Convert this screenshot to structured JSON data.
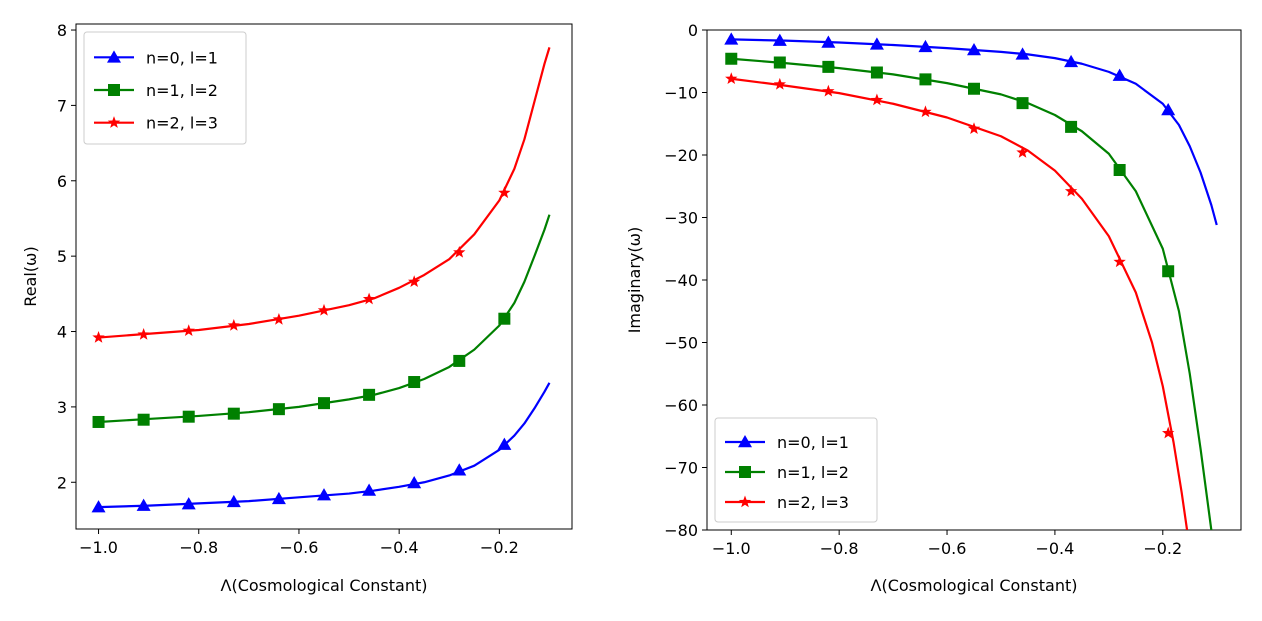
{
  "chart_data": [
    {
      "type": "line",
      "title": "",
      "xlabel": "Λ(Cosmological Constant)",
      "ylabel": "Real(ω)",
      "xlim": [
        -1.045,
        -0.055
      ],
      "ylim": [
        1.38,
        8.08
      ],
      "xticks": [
        -1.0,
        -0.8,
        -0.6,
        -0.4,
        -0.2
      ],
      "xtick_labels": [
        "−1.0",
        "−0.8",
        "−0.6",
        "−0.4",
        "−0.2"
      ],
      "yticks": [
        2,
        3,
        4,
        5,
        6,
        7,
        8
      ],
      "ytick_labels": [
        "2",
        "3",
        "4",
        "5",
        "6",
        "7",
        "8"
      ],
      "grid": false,
      "legend_position": "top-left",
      "series": [
        {
          "name": "n=0, l=1",
          "color": "#0000ff",
          "marker": "triangle",
          "x": [
            -1.0,
            -0.91,
            -0.82,
            -0.73,
            -0.64,
            -0.55,
            -0.46,
            -0.37,
            -0.28,
            -0.19
          ],
          "values": [
            1.67,
            1.69,
            1.71,
            1.74,
            1.78,
            1.83,
            1.89,
            1.99,
            2.16,
            2.5
          ],
          "curve_x": [
            -1.0,
            -0.9,
            -0.8,
            -0.7,
            -0.6,
            -0.5,
            -0.45,
            -0.4,
            -0.35,
            -0.3,
            -0.25,
            -0.2,
            -0.17,
            -0.15,
            -0.13,
            -0.11,
            -0.1
          ],
          "curve_y": [
            1.67,
            1.69,
            1.72,
            1.75,
            1.8,
            1.85,
            1.89,
            1.94,
            2.0,
            2.09,
            2.22,
            2.43,
            2.62,
            2.78,
            2.98,
            3.2,
            3.32
          ]
        },
        {
          "name": "n=1, l=2",
          "color": "#008000",
          "marker": "square",
          "x": [
            -1.0,
            -0.91,
            -0.82,
            -0.73,
            -0.64,
            -0.55,
            -0.46,
            -0.37,
            -0.28,
            -0.19
          ],
          "values": [
            2.8,
            2.83,
            2.87,
            2.91,
            2.97,
            3.05,
            3.16,
            3.33,
            3.61,
            4.17
          ],
          "curve_x": [
            -1.0,
            -0.9,
            -0.8,
            -0.7,
            -0.6,
            -0.5,
            -0.45,
            -0.4,
            -0.35,
            -0.3,
            -0.25,
            -0.2,
            -0.17,
            -0.15,
            -0.13,
            -0.11,
            -0.1
          ],
          "curve_y": [
            2.8,
            2.84,
            2.88,
            2.93,
            3.0,
            3.1,
            3.16,
            3.25,
            3.37,
            3.53,
            3.76,
            4.08,
            4.38,
            4.66,
            5.0,
            5.35,
            5.55
          ]
        },
        {
          "name": "n=2, l=3",
          "color": "#ff0000",
          "marker": "star",
          "x": [
            -1.0,
            -0.91,
            -0.82,
            -0.73,
            -0.64,
            -0.55,
            -0.46,
            -0.37,
            -0.28,
            -0.19
          ],
          "values": [
            3.92,
            3.96,
            4.01,
            4.08,
            4.16,
            4.28,
            4.43,
            4.66,
            5.05,
            5.84
          ],
          "curve_x": [
            -1.0,
            -0.9,
            -0.8,
            -0.7,
            -0.6,
            -0.5,
            -0.45,
            -0.4,
            -0.35,
            -0.3,
            -0.25,
            -0.2,
            -0.17,
            -0.15,
            -0.13,
            -0.11,
            -0.1
          ],
          "curve_y": [
            3.92,
            3.97,
            4.02,
            4.1,
            4.21,
            4.35,
            4.44,
            4.58,
            4.75,
            4.96,
            5.29,
            5.74,
            6.16,
            6.55,
            7.05,
            7.55,
            7.77
          ]
        }
      ]
    },
    {
      "type": "line",
      "title": "",
      "xlabel": "Λ(Cosmological Constant)",
      "ylabel": "Imaginary(ω)",
      "xlim": [
        -1.045,
        -0.055
      ],
      "ylim": [
        -80,
        0
      ],
      "xticks": [
        -1.0,
        -0.8,
        -0.6,
        -0.4,
        -0.2
      ],
      "xtick_labels": [
        "−1.0",
        "−0.8",
        "−0.6",
        "−0.4",
        "−0.2"
      ],
      "yticks": [
        0,
        -10,
        -20,
        -30,
        -40,
        -50,
        -60,
        -70,
        -80
      ],
      "ytick_labels": [
        "0",
        "−10",
        "−20",
        "−30",
        "−40",
        "−50",
        "−60",
        "−70",
        "−80"
      ],
      "grid": false,
      "legend_position": "bottom-left",
      "series": [
        {
          "name": "n=0, l=1",
          "color": "#0000ff",
          "marker": "triangle",
          "x": [
            -1.0,
            -0.91,
            -0.82,
            -0.73,
            -0.64,
            -0.55,
            -0.46,
            -0.37,
            -0.28,
            -0.19
          ],
          "values": [
            -1.5,
            -1.7,
            -2.0,
            -2.3,
            -2.7,
            -3.2,
            -3.9,
            -5.1,
            -7.3,
            -12.8
          ],
          "curve_x": [
            -1.0,
            -0.9,
            -0.8,
            -0.7,
            -0.6,
            -0.5,
            -0.45,
            -0.4,
            -0.35,
            -0.3,
            -0.25,
            -0.2,
            -0.17,
            -0.15,
            -0.13,
            -0.11,
            -0.1
          ],
          "curve_y": [
            -1.5,
            -1.7,
            -2.0,
            -2.4,
            -2.9,
            -3.5,
            -3.9,
            -4.5,
            -5.4,
            -6.7,
            -8.6,
            -11.8,
            -15.2,
            -18.6,
            -22.8,
            -28.0,
            -31.2
          ]
        },
        {
          "name": "n=1, l=2",
          "color": "#008000",
          "marker": "square",
          "x": [
            -1.0,
            -0.91,
            -0.82,
            -0.73,
            -0.64,
            -0.55,
            -0.46,
            -0.37,
            -0.28,
            -0.19
          ],
          "values": [
            -4.6,
            -5.2,
            -5.9,
            -6.8,
            -7.9,
            -9.4,
            -11.7,
            -15.5,
            -22.4,
            -38.6
          ],
          "curve_x": [
            -1.0,
            -0.9,
            -0.8,
            -0.7,
            -0.6,
            -0.5,
            -0.45,
            -0.4,
            -0.35,
            -0.3,
            -0.25,
            -0.2,
            -0.17,
            -0.15,
            -0.13,
            -0.12,
            -0.11
          ],
          "curve_y": [
            -4.6,
            -5.3,
            -6.1,
            -7.1,
            -8.5,
            -10.3,
            -11.7,
            -13.6,
            -16.2,
            -19.8,
            -25.8,
            -35.0,
            -45.0,
            -55.0,
            -67.0,
            -73.5,
            -80.0
          ]
        },
        {
          "name": "n=2, l=3",
          "color": "#ff0000",
          "marker": "star",
          "x": [
            -1.0,
            -0.91,
            -0.82,
            -0.73,
            -0.64,
            -0.55,
            -0.46,
            -0.37,
            -0.28,
            -0.19
          ],
          "values": [
            -7.8,
            -8.7,
            -9.8,
            -11.2,
            -13.1,
            -15.8,
            -19.6,
            -25.8,
            -37.1,
            -64.5
          ],
          "curve_x": [
            -1.0,
            -0.9,
            -0.8,
            -0.7,
            -0.6,
            -0.5,
            -0.45,
            -0.4,
            -0.35,
            -0.3,
            -0.25,
            -0.22,
            -0.2,
            -0.18,
            -0.165,
            -0.155
          ],
          "curve_y": [
            -7.8,
            -8.9,
            -10.1,
            -11.8,
            -14.0,
            -17.0,
            -19.3,
            -22.5,
            -27.0,
            -33.0,
            -42.0,
            -50.0,
            -57.0,
            -66.0,
            -74.0,
            -80.0
          ]
        }
      ]
    }
  ]
}
